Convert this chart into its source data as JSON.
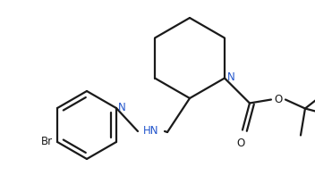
{
  "bg_color": "#ffffff",
  "line_color": "#1a1a1a",
  "n_color": "#2255cc",
  "line_width": 1.6,
  "figsize": [
    3.52,
    2.15
  ],
  "dpi": 100,
  "xlim": [
    0,
    352
  ],
  "ylim": [
    0,
    215
  ]
}
